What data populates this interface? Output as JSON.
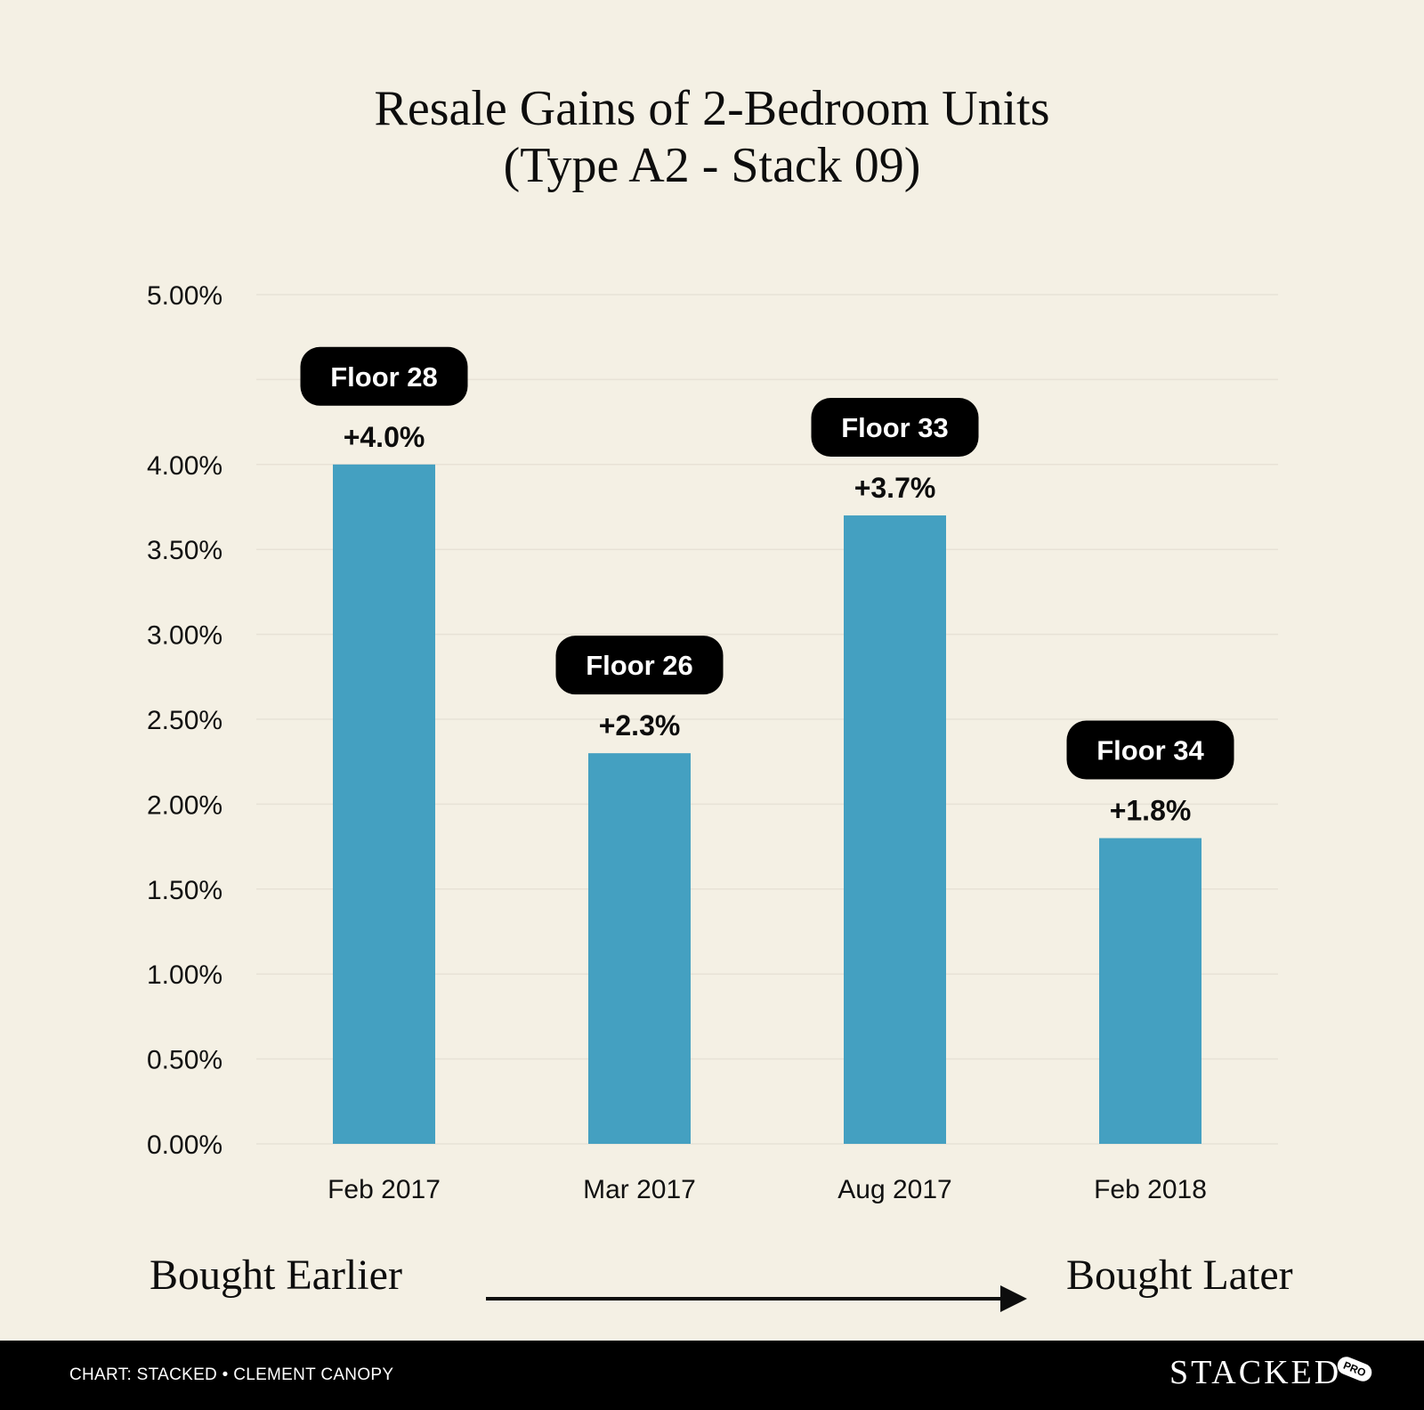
{
  "title_line1": "Resale Gains of 2-Bedroom Units",
  "title_line2": "(Type A2 - Stack 09)",
  "chart_data": {
    "type": "bar",
    "categories": [
      "Feb 2017",
      "Mar 2017",
      "Aug 2017",
      "Feb 2018"
    ],
    "values": [
      4.0,
      2.3,
      3.7,
      1.8
    ],
    "value_labels": [
      "+4.0%",
      "+2.3%",
      "+3.7%",
      "+1.8%"
    ],
    "bar_tags": [
      "Floor 28",
      "Floor 26",
      "Floor 33",
      "Floor 34"
    ],
    "yticks": [
      0,
      0.5,
      1,
      1.5,
      2,
      2.5,
      3,
      3.5,
      4,
      4.5,
      5
    ],
    "ytick_labels": [
      "0.00%",
      "0.50%",
      "1.00%",
      "1.50%",
      "2.00%",
      "2.50%",
      "3.00%",
      "3.50%",
      "4.00%",
      "",
      "5.00%"
    ],
    "ylim": [
      0,
      5
    ],
    "xlabel": "",
    "ylabel": "",
    "grid": true,
    "bar_color": "#44a0c1",
    "tag_color": "#000000",
    "gridline_color": "#e7e2d6"
  },
  "annotation_left": "Bought Earlier",
  "annotation_right": "Bought Later",
  "footer": {
    "credit": "CHART: STACKED • CLEMENT CANOPY",
    "brand": "STACKED",
    "brand_badge": "PRO"
  },
  "colors": {
    "background": "#f4f0e4",
    "footer_background": "#000000"
  }
}
